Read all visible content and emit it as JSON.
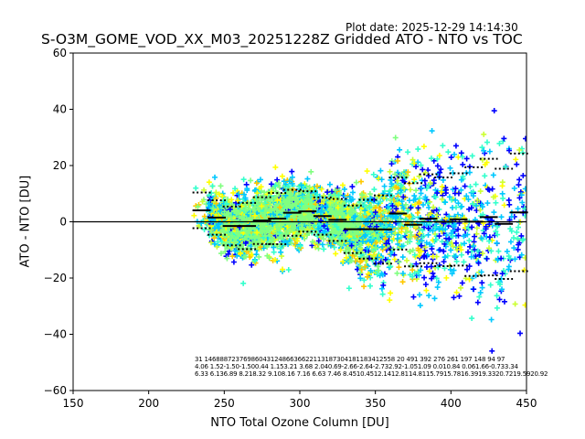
{
  "header": {
    "plot_date": "Plot date: 2025-12-29 14:14:30",
    "title": "S-O3M_GOME_VOD_XX_M03_20251228Z Gridded ATO - NTO vs TOC"
  },
  "chart_data": {
    "type": "scatter",
    "title": "S-O3M_GOME_VOD_XX_M03_20251228Z Gridded ATO - NTO vs TOC",
    "xlabel": "NTO Total Ozone Column [DU]",
    "ylabel": "ATO - NTO [DU]",
    "xlim": [
      150,
      450
    ],
    "ylim": [
      -60,
      60
    ],
    "xticks": [
      "150",
      "200",
      "250",
      "300",
      "350",
      "400",
      "450"
    ],
    "yticks": [
      "60",
      "40",
      "20",
      "0",
      "−20",
      "−40",
      "−60"
    ],
    "grid": false,
    "marker": "+",
    "colors": [
      "#0000ff",
      "#00c8ff",
      "#33ffcc",
      "#80ff80",
      "#ccff33",
      "#ffff00",
      "#ffc800"
    ],
    "bins": [
      235,
      245,
      255,
      265,
      275,
      285,
      295,
      305,
      315,
      325,
      335,
      345,
      355,
      365,
      375,
      385,
      395,
      405,
      415,
      425,
      435,
      445
    ],
    "counts": [
      31,
      1468,
      8872,
      3769,
      8604,
      3124,
      8663,
      6622,
      1131,
      8730,
      4181,
      1834,
      1255,
      820,
      491,
      392,
      276,
      261,
      197,
      148,
      94,
      97
    ],
    "mean": [
      4.06,
      1.52,
      -1.5,
      -1.5,
      0.44,
      1.15,
      3.21,
      3.68,
      2.04,
      0.69,
      -2.66,
      -2.64,
      -2.73,
      2.92,
      -1.05,
      1.09,
      0.01,
      0.84,
      0.06,
      1.66,
      -0.73,
      3.34
    ],
    "std": [
      6.33,
      6.13,
      6.89,
      8.21,
      8.32,
      9.1,
      8.16,
      7.16,
      6.63,
      7.46,
      8.45,
      10.45,
      12.14,
      12.81,
      14.81,
      15.79,
      15.78,
      16.39,
      19.33,
      20.72,
      19.59,
      20.92
    ],
    "stat_rows": [
      "31  1468887237698604312486636622113187304181183412558 20  491  392  276  261  197  148   94   97",
      "4.06 1.52-1.50-1.500.44 1.153.21 3.68 2.040.69-2.66-2.64-2.732.92-1.051.09 0.010.84 0.061.66-0.733.34",
      "6.33 6.136.89 8.218.32 9.108.16 7.16 6.63 7.46 8.4510.4512.1412.8114.8115.7915.7816.3919.3320.7219.5920.92"
    ]
  }
}
